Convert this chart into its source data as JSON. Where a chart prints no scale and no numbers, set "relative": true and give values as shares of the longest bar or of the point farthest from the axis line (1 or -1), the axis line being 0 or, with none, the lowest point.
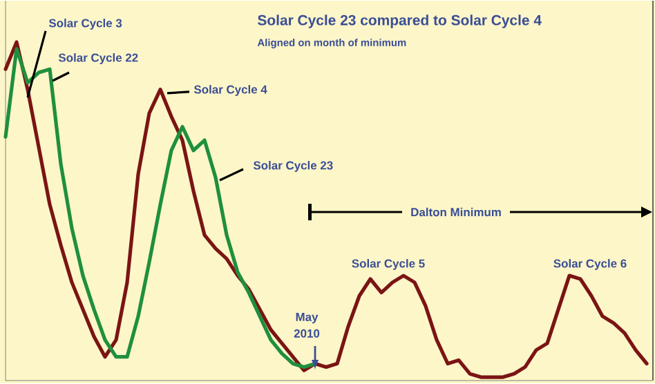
{
  "chart_data": {
    "type": "line",
    "title": "Solar Cycle 23 compared to Solar Cycle 4",
    "subtitle": "Aligned on month of minimum",
    "relative": true,
    "categories": [
      null,
      null,
      null,
      null,
      null,
      null,
      null,
      null,
      null,
      null,
      null,
      null,
      null,
      null,
      null,
      null,
      null,
      null,
      null,
      null,
      null,
      null,
      null,
      null,
      null,
      null,
      null,
      null,
      null,
      null,
      null,
      null,
      null,
      null,
      null,
      null,
      null,
      null,
      null,
      null,
      null,
      null,
      null,
      null,
      null,
      null,
      null,
      null,
      null,
      null,
      null,
      null,
      null,
      null,
      null,
      null,
      null,
      null,
      null
    ],
    "series": [
      {
        "color": "#7b1414",
        "values": [
          0.92,
          1.0,
          0.86,
          0.69,
          0.52,
          0.4,
          0.29,
          0.21,
          0.13,
          0.07,
          0.12,
          0.29,
          0.61,
          0.79,
          0.86,
          0.78,
          0.71,
          0.56,
          0.43,
          0.39,
          0.36,
          0.31,
          0.27,
          0.21,
          0.15,
          0.11,
          0.07,
          0.03,
          0.05,
          0.04,
          0.05,
          0.16,
          0.25,
          0.3,
          0.26,
          0.29,
          0.31,
          0.29,
          0.22,
          0.12,
          0.05,
          0.06,
          0.02,
          0.01,
          0.01,
          0.01,
          0.02,
          0.04,
          0.09,
          0.11,
          0.21,
          0.31,
          0.3,
          0.25,
          0.19,
          0.17,
          0.14,
          0.09,
          0.05
        ]
      },
      {
        "color": "#1f8f3e",
        "values": [
          0.72,
          0.98,
          0.88,
          0.91,
          0.92,
          0.64,
          0.45,
          0.31,
          0.21,
          0.12,
          0.07,
          0.07,
          0.19,
          0.35,
          0.52,
          0.68,
          0.75,
          0.68,
          0.71,
          0.6,
          0.43,
          0.32,
          0.26,
          0.19,
          0.12,
          0.08,
          0.05,
          0.04,
          0.05,
          null,
          null,
          null,
          null,
          null,
          null,
          null,
          null,
          null,
          null,
          null,
          null,
          null,
          null,
          null,
          null,
          null,
          null,
          null,
          null,
          null,
          null,
          null,
          null,
          null,
          null,
          null,
          null,
          null,
          null
        ]
      }
    ],
    "annotations": [
      "Solar Cycle 3",
      "Solar Cycle 22",
      "Solar Cycle 4",
      "Solar Cycle 23",
      "Dalton Minimum",
      "May 2010",
      "Solar Cycle 5",
      "Solar Cycle 6"
    ]
  }
}
